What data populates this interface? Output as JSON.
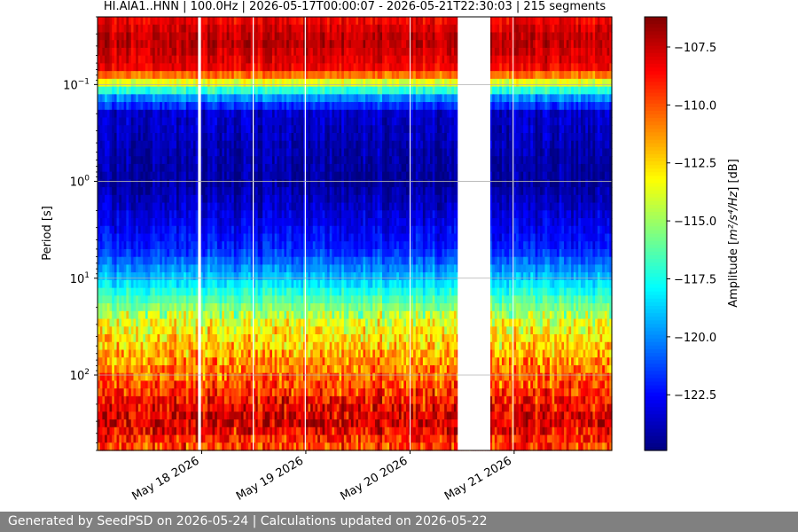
{
  "chart_data": {
    "type": "heatmap",
    "title": "HI.AIA1..HNN | 100.0Hz | 2026-05-17T00:00:07 - 2026-05-21T22:30:03 | 215 segments",
    "ylabel": "Period [s]",
    "yscale": "log",
    "yrange_s": [
      0.02,
      600
    ],
    "yticks": [
      {
        "value": 0.1,
        "base": "10",
        "exp": "−1"
      },
      {
        "value": 1,
        "base": "10",
        "exp": "0"
      },
      {
        "value": 10,
        "base": "10",
        "exp": "1"
      },
      {
        "value": 100,
        "base": "10",
        "exp": "2"
      }
    ],
    "xrange": [
      "2026-05-17T00:00:07",
      "2026-05-21T22:30:03"
    ],
    "xticks": [
      {
        "date": "2026-05-18",
        "label": "May 18 2026"
      },
      {
        "date": "2026-05-19",
        "label": "May 19 2026"
      },
      {
        "date": "2026-05-20",
        "label": "May 20 2026"
      },
      {
        "date": "2026-05-21",
        "label": "May 21 2026"
      }
    ],
    "gaps": [
      [
        "2026-05-17T23:10",
        "2026-05-17T23:50"
      ],
      [
        "2026-05-18T11:45",
        "2026-05-18T12:00"
      ],
      [
        "2026-05-18T23:45",
        "2026-05-19T00:00"
      ],
      [
        "2026-05-19T23:55",
        "2026-05-20T00:05"
      ],
      [
        "2026-05-20T11:00",
        "2026-05-20T18:30"
      ],
      [
        "2026-05-20T23:40",
        "2026-05-20T23:50"
      ]
    ],
    "grid": "y-major",
    "colorbar": {
      "label_prefix": "Amplitude [",
      "label_math": "m²/s⁴/Hz",
      "label_suffix": "] [dB]",
      "range": [
        -124.9,
        -106.2
      ],
      "ticks": [
        -107.5,
        -110.0,
        -112.5,
        -115.0,
        -117.5,
        -120.0,
        -122.5
      ],
      "tick_labels": [
        "−107.5",
        "−110.0",
        "−112.5",
        "−115.0",
        "−117.5",
        "−120.0",
        "−122.5"
      ],
      "colormap": "jet"
    },
    "amplitude_profile_db": [
      {
        "period_s": 0.02,
        "db": -108.5
      },
      {
        "period_s": 0.035,
        "db": -107.2
      },
      {
        "period_s": 0.07,
        "db": -108.5
      },
      {
        "period_s": 0.1,
        "db": -114.5
      },
      {
        "period_s": 0.13,
        "db": -119.5
      },
      {
        "period_s": 0.2,
        "db": -123.5
      },
      {
        "period_s": 1,
        "db": -124.5
      },
      {
        "period_s": 5,
        "db": -122.0
      },
      {
        "period_s": 10,
        "db": -119.0
      },
      {
        "period_s": 30,
        "db": -113.5
      },
      {
        "period_s": 100,
        "db": -110.5
      },
      {
        "period_s": 300,
        "db": -107.5
      },
      {
        "period_s": 600,
        "db": -110.0
      }
    ]
  },
  "footer_text": "Generated by SeedPSD on 2026-05-24 | Calculations updated on 2026-05-22"
}
